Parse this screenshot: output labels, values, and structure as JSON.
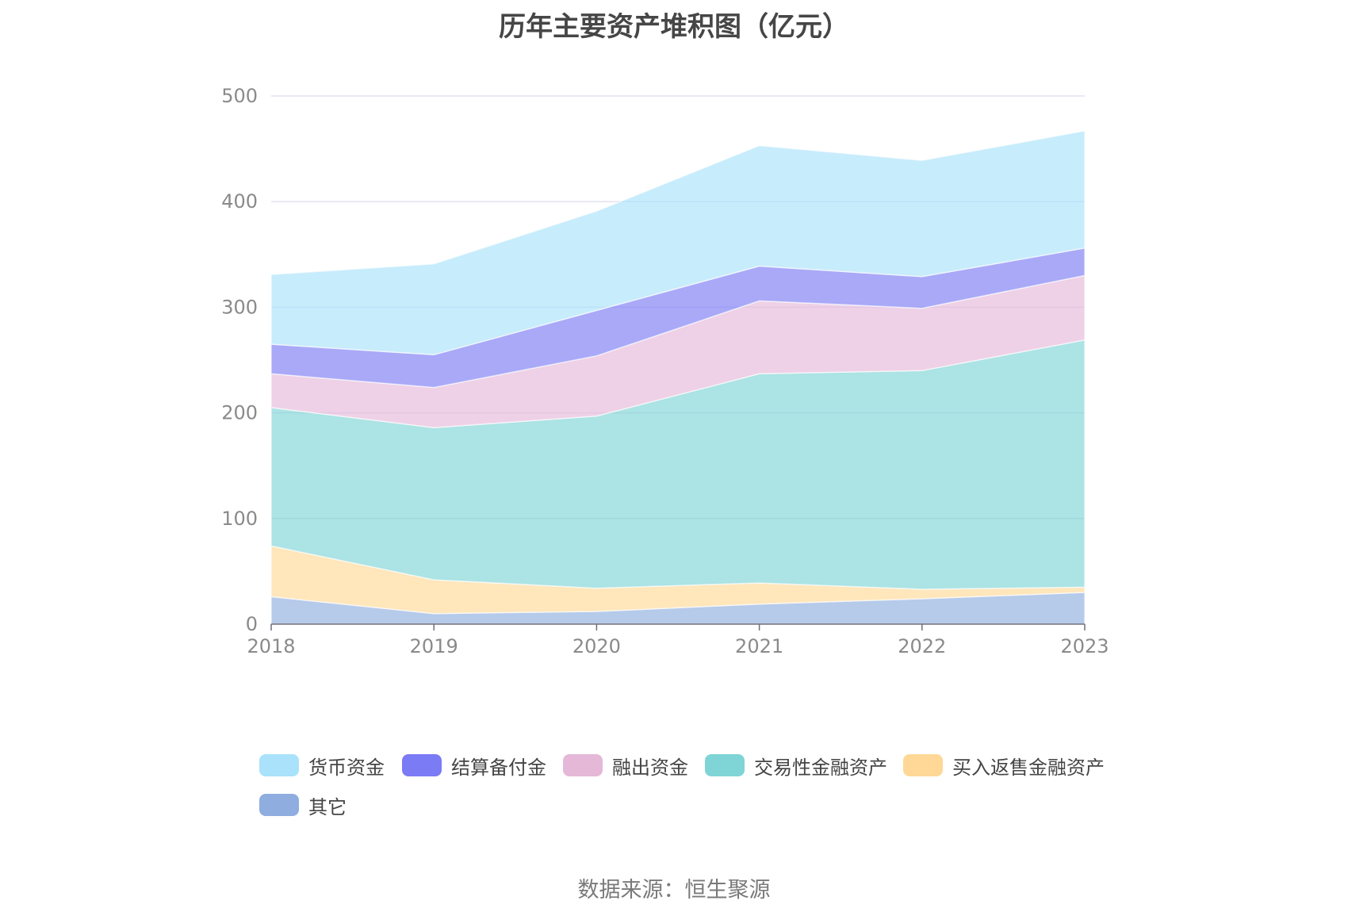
{
  "chart_data": {
    "type": "area",
    "stacked": true,
    "title": "历年主要资产堆积图（亿元）",
    "xlabel": "",
    "ylabel": "",
    "categories": [
      "2018",
      "2019",
      "2020",
      "2021",
      "2022",
      "2023"
    ],
    "ylim": [
      0,
      500
    ],
    "yticks": [
      0,
      100,
      200,
      300,
      400,
      500
    ],
    "grid": true,
    "legend_position": "bottom",
    "series": [
      {
        "name": "其它",
        "color": "#8fadde",
        "values": [
          26,
          10,
          12,
          19,
          24,
          30
        ]
      },
      {
        "name": "买入返售金融资产",
        "color": "#ffd897",
        "values": [
          48,
          32,
          22,
          20,
          9,
          5
        ]
      },
      {
        "name": "交易性金融资产",
        "color": "#7fd4d6",
        "values": [
          131,
          144,
          163,
          198,
          207,
          234
        ]
      },
      {
        "name": "融出资金",
        "color": "#e5b8d8",
        "values": [
          32,
          38,
          57,
          69,
          59,
          61
        ]
      },
      {
        "name": "结算备付金",
        "color": "#7b7bf5",
        "values": [
          28,
          31,
          43,
          33,
          30,
          26
        ]
      },
      {
        "name": "货币资金",
        "color": "#a9e2fa",
        "values": [
          66,
          86,
          94,
          114,
          110,
          111
        ]
      }
    ]
  },
  "legend": {
    "items": [
      {
        "label": "货币资金",
        "color": "#a9e2fa"
      },
      {
        "label": "结算备付金",
        "color": "#7b7bf5"
      },
      {
        "label": "融出资金",
        "color": "#e5b8d8"
      },
      {
        "label": "交易性金融资产",
        "color": "#7fd4d6"
      },
      {
        "label": "买入返售金融资产",
        "color": "#ffd897"
      },
      {
        "label": "其它",
        "color": "#8fadde"
      }
    ]
  },
  "source": "数据来源：恒生聚源"
}
